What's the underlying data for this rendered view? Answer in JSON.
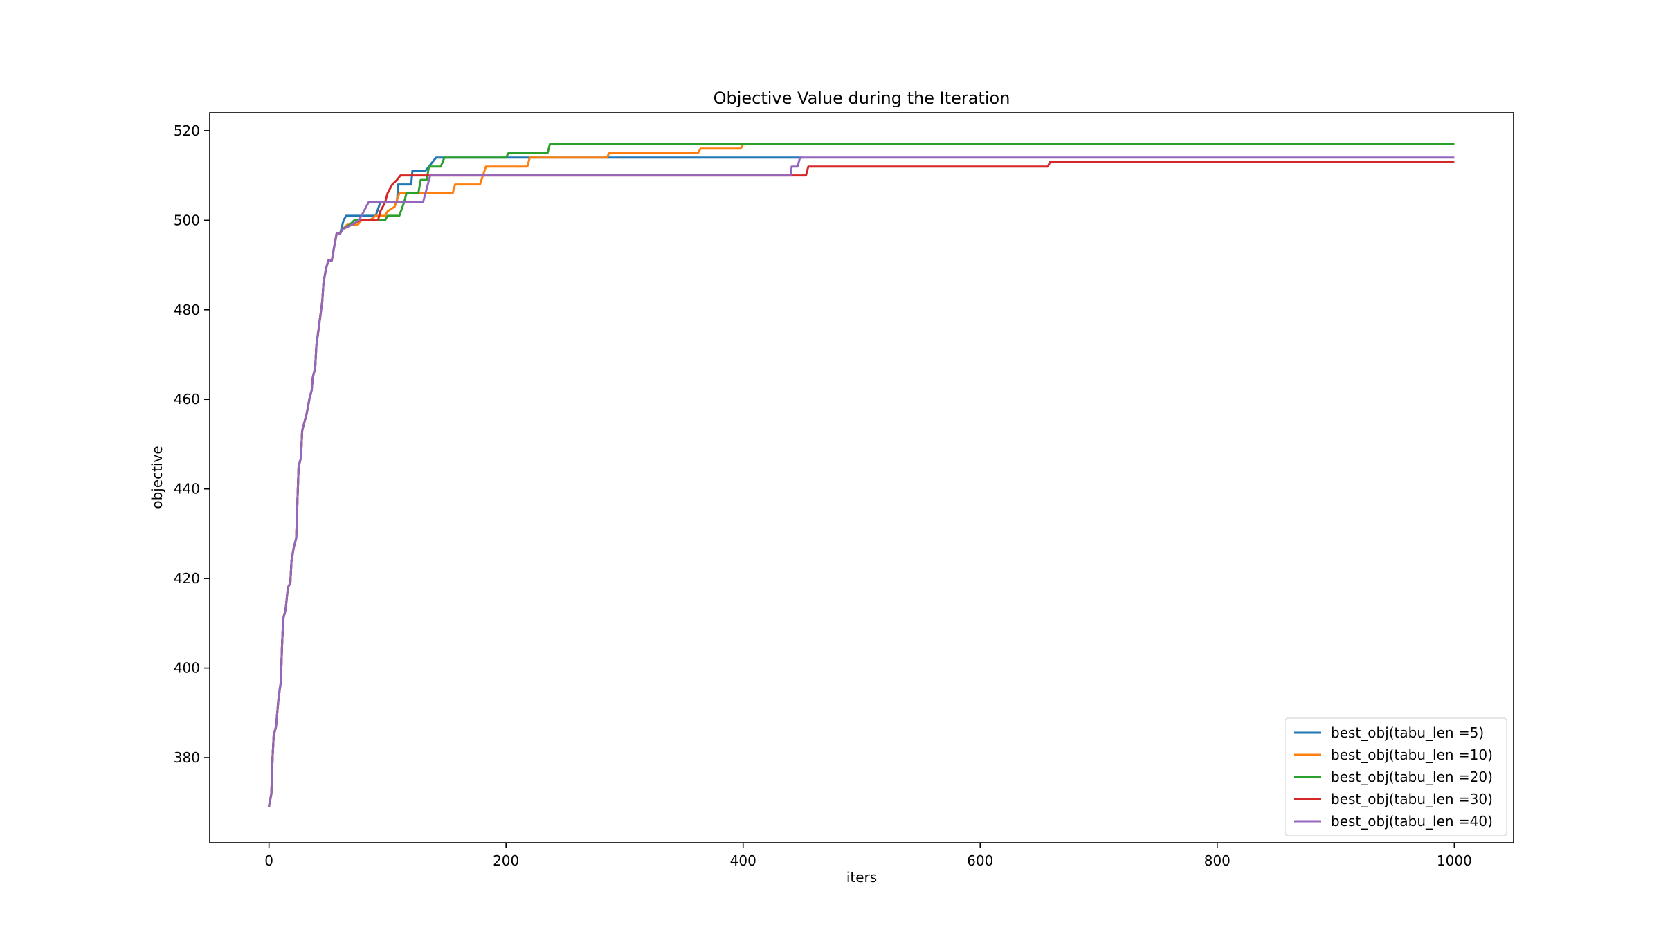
{
  "chart_data": {
    "type": "line",
    "title": "Objective Value during the Iteration",
    "xlabel": "iters",
    "ylabel": "objective",
    "xlim": [
      -50,
      1050
    ],
    "ylim": [
      361,
      524
    ],
    "xticks": [
      0,
      200,
      400,
      600,
      800,
      1000
    ],
    "yticks": [
      380,
      400,
      420,
      440,
      460,
      480,
      500,
      520
    ],
    "grid": false,
    "legend_position": "lower-right",
    "common_prefix": [
      [
        0,
        369
      ],
      [
        2,
        372
      ],
      [
        3,
        380
      ],
      [
        4,
        385
      ],
      [
        6,
        387
      ],
      [
        8,
        393
      ],
      [
        10,
        397
      ],
      [
        11,
        405
      ],
      [
        12,
        411
      ],
      [
        14,
        413
      ],
      [
        16,
        418
      ],
      [
        18,
        419
      ],
      [
        19,
        424
      ],
      [
        21,
        427
      ],
      [
        23,
        429
      ],
      [
        24,
        437
      ],
      [
        25,
        445
      ],
      [
        27,
        447
      ],
      [
        28,
        453
      ],
      [
        30,
        455
      ],
      [
        32,
        457
      ],
      [
        34,
        460
      ],
      [
        36,
        462
      ],
      [
        37,
        465
      ],
      [
        39,
        467
      ],
      [
        40,
        472
      ],
      [
        42,
        476
      ],
      [
        44,
        480
      ],
      [
        45,
        482
      ],
      [
        46,
        486
      ],
      [
        48,
        489
      ],
      [
        50,
        491
      ],
      [
        53,
        491
      ],
      [
        55,
        494
      ],
      [
        57,
        497
      ],
      [
        60,
        497
      ]
    ],
    "series": [
      {
        "name": "best_obj(tabu_len =5)",
        "color": "#1f77b4",
        "points": [
          [
            60,
            497
          ],
          [
            63,
            500
          ],
          [
            65,
            501
          ],
          [
            90,
            501
          ],
          [
            94,
            504
          ],
          [
            108,
            504
          ],
          [
            109,
            508
          ],
          [
            120,
            508
          ],
          [
            121,
            511
          ],
          [
            132,
            511
          ],
          [
            141,
            514
          ],
          [
            450,
            514
          ]
        ]
      },
      {
        "name": "best_obj(tabu_len =10)",
        "color": "#ff7f0e",
        "points": [
          [
            60,
            497
          ],
          [
            62,
            498
          ],
          [
            66,
            499
          ],
          [
            75,
            499
          ],
          [
            78,
            500
          ],
          [
            85,
            500
          ],
          [
            90,
            501
          ],
          [
            98,
            501
          ],
          [
            100,
            502
          ],
          [
            106,
            503
          ],
          [
            110,
            506
          ],
          [
            155,
            506
          ],
          [
            157,
            508
          ],
          [
            178,
            508
          ],
          [
            183,
            512
          ],
          [
            218,
            512
          ],
          [
            220,
            514
          ],
          [
            285,
            514
          ],
          [
            287,
            515
          ],
          [
            362,
            515
          ],
          [
            364,
            516
          ],
          [
            398,
            516
          ],
          [
            400,
            517
          ],
          [
            1000,
            517
          ]
        ]
      },
      {
        "name": "best_obj(tabu_len =20)",
        "color": "#2ca02c",
        "points": [
          [
            60,
            497
          ],
          [
            62,
            498
          ],
          [
            68,
            499
          ],
          [
            72,
            500
          ],
          [
            98,
            500
          ],
          [
            100,
            501
          ],
          [
            110,
            501
          ],
          [
            114,
            504
          ],
          [
            116,
            506
          ],
          [
            126,
            506
          ],
          [
            128,
            509
          ],
          [
            133,
            509
          ],
          [
            135,
            512
          ],
          [
            145,
            512
          ],
          [
            148,
            514
          ],
          [
            200,
            514
          ],
          [
            202,
            515
          ],
          [
            235,
            515
          ],
          [
            237,
            517
          ],
          [
            1000,
            517
          ]
        ]
      },
      {
        "name": "best_obj(tabu_len =30)",
        "color": "#d62728",
        "points": [
          [
            60,
            497
          ],
          [
            62,
            498
          ],
          [
            70,
            499
          ],
          [
            77,
            500
          ],
          [
            92,
            500
          ],
          [
            94,
            502
          ],
          [
            98,
            504
          ],
          [
            100,
            506
          ],
          [
            104,
            508
          ],
          [
            108,
            509
          ],
          [
            111,
            510
          ],
          [
            125,
            510
          ],
          [
            127,
            510
          ],
          [
            440,
            510
          ],
          [
            453,
            510
          ],
          [
            455,
            512
          ],
          [
            657,
            512
          ],
          [
            659,
            513
          ],
          [
            1000,
            513
          ]
        ]
      },
      {
        "name": "best_obj(tabu_len =40)",
        "color": "#9467bd",
        "points": [
          [
            60,
            497
          ],
          [
            62,
            498
          ],
          [
            70,
            499
          ],
          [
            76,
            500
          ],
          [
            80,
            502
          ],
          [
            84,
            504
          ],
          [
            130,
            504
          ],
          [
            132,
            506
          ],
          [
            136,
            510
          ],
          [
            440,
            510
          ],
          [
            441,
            512
          ],
          [
            446,
            512
          ],
          [
            448,
            514
          ],
          [
            1000,
            514
          ]
        ]
      }
    ],
    "legend": [
      "best_obj(tabu_len =5)",
      "best_obj(tabu_len =10)",
      "best_obj(tabu_len =20)",
      "best_obj(tabu_len =30)",
      "best_obj(tabu_len =40)"
    ]
  }
}
